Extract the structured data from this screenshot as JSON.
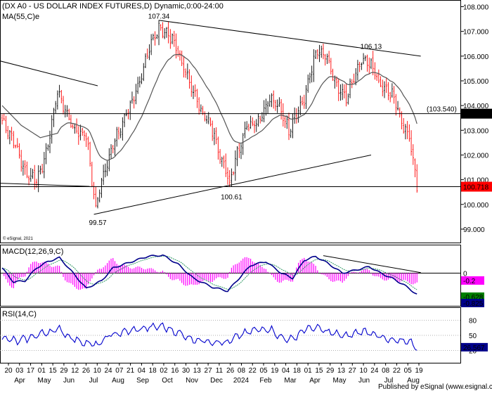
{
  "chart_data": [
    {
      "type": "candlestick",
      "title": "(DX A0 - US DOLLAR INDEX FUTURES,D) Dynamic,0:00-24:00",
      "indicator_label": "MA(55,C)e",
      "credit": "© eSignal, 2021",
      "ylim": [
        98.6,
        108.1
      ],
      "y_ticks": [
        "108.000",
        "107.000",
        "106.000",
        "105.000",
        "104.000",
        "103.000",
        "102.000",
        "101.000",
        "100.000",
        "99.000"
      ],
      "price_tags": {
        "target_label": "(103.540)",
        "level_upper": "103.672",
        "level_lower": "100.718",
        "level_upper_value": 103.672,
        "level_lower_value": 100.718
      },
      "annotations": [
        {
          "label": "107.34",
          "value": 107.34
        },
        {
          "label": "106.13",
          "value": 106.13
        },
        {
          "label": "100.61",
          "value": 100.61
        },
        {
          "label": "99.57",
          "value": 99.57
        }
      ],
      "trendlines": [
        {
          "from": [
            -10,
            105.98
          ],
          "to": [
            50,
            104.8
          ]
        },
        {
          "from": [
            -10,
            100.88
          ],
          "to": [
            46,
            100.73
          ]
        },
        {
          "from": [
            82,
            107.45
          ],
          "to": [
            219,
            106.0
          ]
        },
        {
          "from": [
            48,
            99.6
          ],
          "to": [
            193,
            102.0
          ]
        }
      ],
      "horizontal_levels": [
        103.672,
        100.718
      ],
      "series": [
        {
          "name": "DX A0",
          "kind": "candle",
          "color_up": "#000000",
          "color_down": "#ff0000"
        },
        {
          "name": "MA(55,C)e",
          "kind": "line",
          "color": "#555555"
        }
      ]
    },
    {
      "type": "line",
      "title": "MACD(12,26,9,C)",
      "ylim": [
        -1.25,
        1.0
      ],
      "zero_label": "0",
      "tags": [
        {
          "label": "-0.2",
          "color": "#ff00ff",
          "text_color": "#ffffff"
        },
        {
          "label": "-0.628",
          "color": "#008000",
          "text_color": "#ffffff"
        },
        {
          "label": "-0.825",
          "color": "#00008b",
          "text_color": "#ffffff"
        }
      ],
      "series": [
        {
          "name": "MACD",
          "color": "#00008b"
        },
        {
          "name": "Signal",
          "color": "#339966"
        },
        {
          "name": "Histogram",
          "color": "#ff00ff"
        }
      ]
    },
    {
      "type": "line",
      "title": "RSI(14,C)",
      "ylim": [
        0,
        100
      ],
      "y_ticks": [
        "80",
        "50",
        "20"
      ],
      "tag": {
        "label": "26.567",
        "color": "#00008b",
        "text_color": "#ffffff"
      },
      "series": [
        {
          "name": "RSI",
          "color": "#0000cd"
        }
      ]
    }
  ],
  "x_axis": {
    "day_ticks": [
      "20",
      "03",
      "17",
      "01",
      "15",
      "29",
      "12",
      "26",
      "10",
      "24",
      "07",
      "21",
      "04",
      "18",
      "02",
      "16",
      "30",
      "13",
      "27",
      "11",
      "26",
      "08",
      "22",
      "05",
      "19",
      "04",
      "18",
      "01",
      "15",
      "29",
      "13",
      "27",
      "10",
      "24",
      "08",
      "22",
      "05",
      "19"
    ],
    "month_labels": [
      "Apr",
      "May",
      "Jun",
      "Jul",
      "Aug",
      "Sep",
      "Oct",
      "Nov",
      "Dec",
      "2024",
      "Feb",
      "Mar",
      "Apr",
      "May",
      "Jun",
      "Jul",
      "Aug"
    ]
  },
  "footer": "Published by eSignal (www.esignal.com)"
}
